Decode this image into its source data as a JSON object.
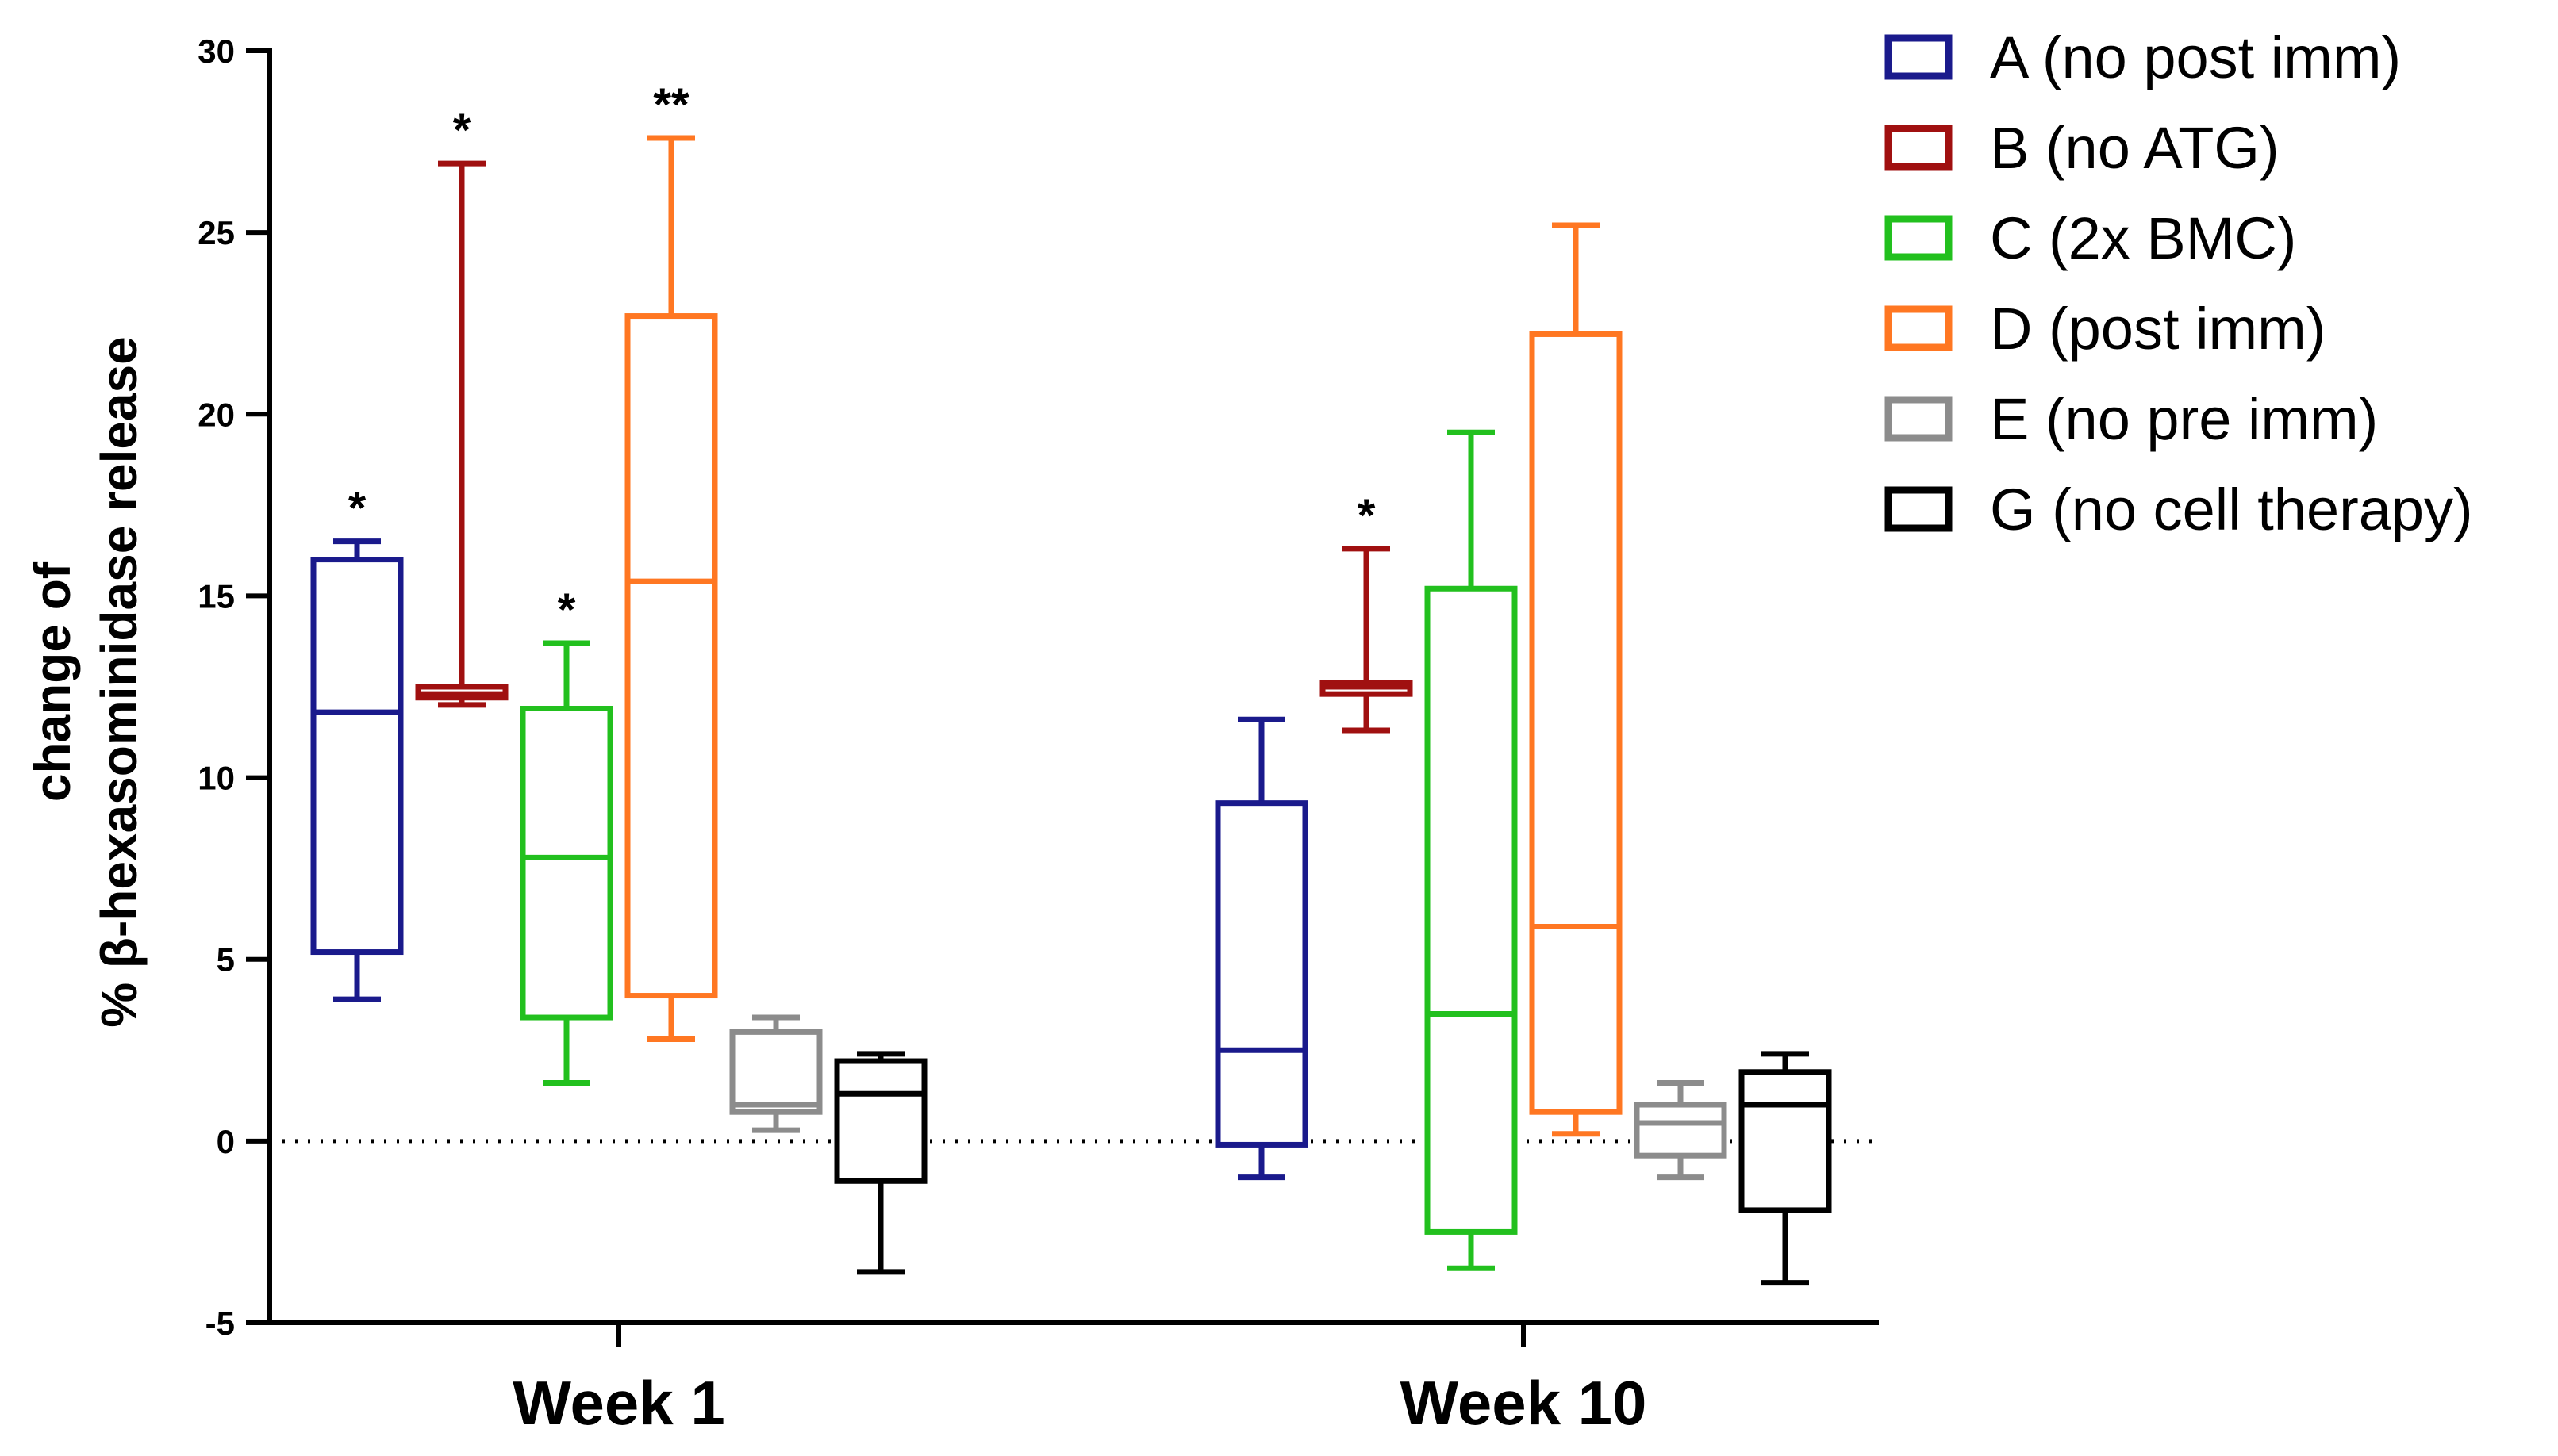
{
  "chart_data": {
    "type": "box",
    "title": "",
    "xlabel": "",
    "ylabel_line1": "change of",
    "ylabel_line2": "% β-hexasominidase release",
    "ylim": [
      -5,
      30
    ],
    "yticks": [
      -5,
      0,
      5,
      10,
      15,
      20,
      25,
      30
    ],
    "ytick_labels": [
      "-5",
      "0",
      "5",
      "10",
      "15",
      "20",
      "25",
      "30"
    ],
    "reference_line": 0,
    "categories": [
      "Week 1",
      "Week 10"
    ],
    "series": [
      {
        "name": "A (no post imm)",
        "color": "#1a1a8c",
        "boxes": [
          {
            "min": 3.9,
            "q1": 5.2,
            "median": 11.8,
            "q3": 16.0,
            "max": 16.5,
            "sig": "*"
          },
          {
            "min": -1.0,
            "q1": -0.1,
            "median": 2.5,
            "q3": 9.3,
            "max": 11.6,
            "sig": ""
          }
        ]
      },
      {
        "name": "B (no ATG)",
        "color": "#a01010",
        "boxes": [
          {
            "min": 12.0,
            "q1": 12.2,
            "median": 12.3,
            "q3": 12.5,
            "max": 26.9,
            "sig": "*"
          },
          {
            "min": 11.3,
            "q1": 12.3,
            "median": 12.5,
            "q3": 12.6,
            "max": 16.3,
            "sig": "*"
          }
        ]
      },
      {
        "name": "C (2x BMC)",
        "color": "#22c01e",
        "boxes": [
          {
            "min": 1.6,
            "q1": 3.4,
            "median": 7.8,
            "q3": 11.9,
            "max": 13.7,
            "sig": "*"
          },
          {
            "min": -3.5,
            "q1": -2.5,
            "median": 3.5,
            "q3": 15.2,
            "max": 19.5,
            "sig": ""
          }
        ]
      },
      {
        "name": "D (post imm)",
        "color": "#ff7722",
        "boxes": [
          {
            "min": 2.8,
            "q1": 4.0,
            "median": 15.4,
            "q3": 22.7,
            "max": 27.6,
            "sig": "**"
          },
          {
            "min": 0.2,
            "q1": 0.8,
            "median": 5.9,
            "q3": 22.2,
            "max": 25.2,
            "sig": ""
          }
        ]
      },
      {
        "name": "E (no pre imm)",
        "color": "#8c8c8c",
        "boxes": [
          {
            "min": 0.3,
            "q1": 0.8,
            "median": 1.0,
            "q3": 3.0,
            "max": 3.4,
            "sig": ""
          },
          {
            "min": -1.0,
            "q1": -0.4,
            "median": 0.5,
            "q3": 1.0,
            "max": 1.6,
            "sig": ""
          }
        ]
      },
      {
        "name": "G (no cell therapy)",
        "color": "#000000",
        "boxes": [
          {
            "min": -3.6,
            "q1": -1.1,
            "median": 1.3,
            "q3": 2.2,
            "max": 2.4,
            "sig": ""
          },
          {
            "min": -3.9,
            "q1": -1.9,
            "median": 1.0,
            "q3": 1.9,
            "max": 2.4,
            "sig": ""
          }
        ]
      }
    ],
    "legend_position": "top-right"
  }
}
